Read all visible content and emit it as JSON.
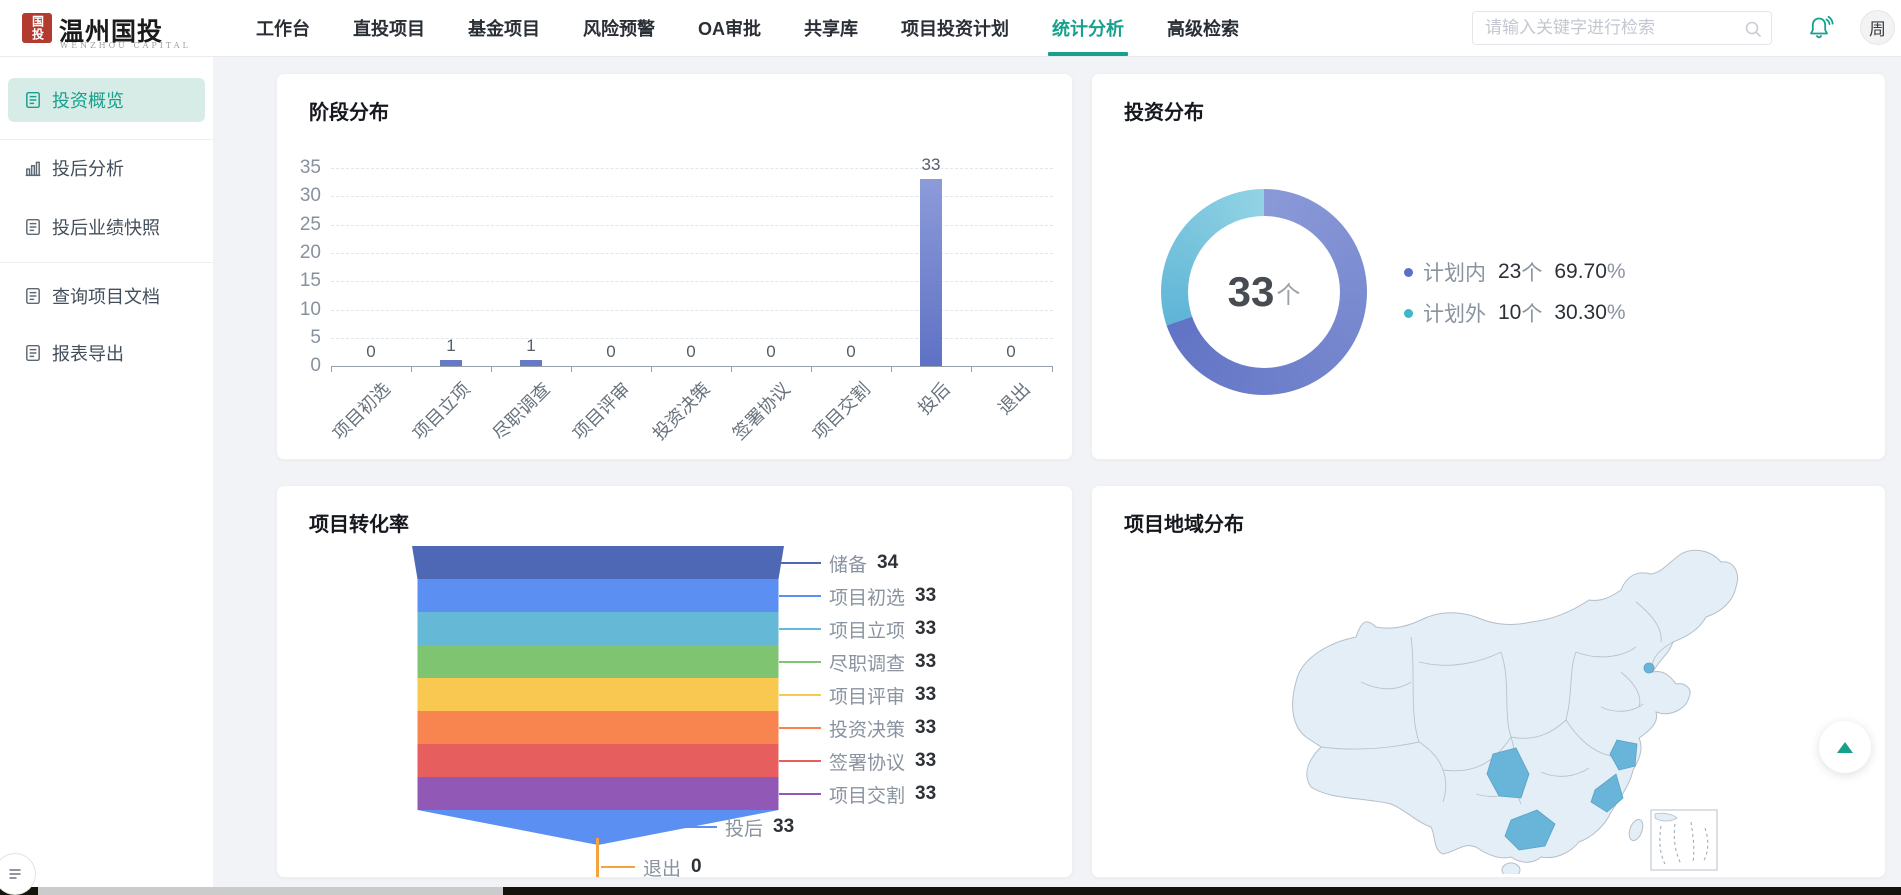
{
  "brand": {
    "seal_text": "国投",
    "name": "温州国投",
    "subtitle": "WENZHOU CAPITAL"
  },
  "nav": {
    "items": [
      {
        "label": "工作台"
      },
      {
        "label": "直投项目"
      },
      {
        "label": "基金项目"
      },
      {
        "label": "风险预警"
      },
      {
        "label": "OA审批"
      },
      {
        "label": "共享库"
      },
      {
        "label": "项目投资计划"
      },
      {
        "label": "统计分析"
      },
      {
        "label": "高级检索"
      }
    ],
    "active_label": "统计分析"
  },
  "search": {
    "placeholder": "请输入关键字进行检索"
  },
  "user": {
    "avatar_text": "周"
  },
  "sidebar": {
    "items": [
      {
        "label": "投资概览"
      },
      {
        "label": "投后分析"
      },
      {
        "label": "投后业绩快照"
      },
      {
        "label": "查询项目文档"
      },
      {
        "label": "报表导出"
      }
    ],
    "active_label": "投资概览"
  },
  "colors": {
    "accent_teal": "#17a08c",
    "bar_fill": "#6679c7",
    "axis_label": "#87919d",
    "map_base": "#e4eef6",
    "map_highlight": "#69b4d9"
  },
  "chart_data": [
    {
      "type": "bar",
      "title": "阶段分布",
      "categories": [
        "项目初选",
        "项目立项",
        "尽职调查",
        "项目评审",
        "投资决策",
        "签署协议",
        "项目交割",
        "投后",
        "退出"
      ],
      "values": [
        0,
        1,
        1,
        0,
        0,
        0,
        0,
        33,
        0
      ],
      "yticks": [
        35,
        30,
        25,
        20,
        15,
        10,
        5,
        0
      ],
      "ylim": [
        0,
        35
      ],
      "grid": "dashed horizontal"
    },
    {
      "type": "pie",
      "title": "投资分布",
      "center_value": "33",
      "center_unit": "个",
      "series": [
        {
          "name": "计划内",
          "count": 23,
          "unit": "个",
          "percent": "69.70",
          "percent_unit": "%",
          "color": "#5b6fc4",
          "color_light": "#8a99d7",
          "color_dark": "#6173c5"
        },
        {
          "name": "计划外",
          "count": 10,
          "unit": "个",
          "percent": "30.30",
          "percent_unit": "%",
          "color": "#3cb8c6",
          "color_light": "#92d3e4",
          "color_dark": "#5fb5d7"
        }
      ],
      "legend_position": "right"
    },
    {
      "type": "funnel",
      "title": "项目转化率",
      "stages": [
        {
          "name": "储备",
          "value": 34,
          "color": "#4e68b5"
        },
        {
          "name": "项目初选",
          "value": 33,
          "color": "#5b8ff2"
        },
        {
          "name": "项目立项",
          "value": 33,
          "color": "#65b8d6"
        },
        {
          "name": "尽职调查",
          "value": 33,
          "color": "#7fc471"
        },
        {
          "name": "项目评审",
          "value": 33,
          "color": "#f8c851"
        },
        {
          "name": "投资决策",
          "value": 33,
          "color": "#f8854f"
        },
        {
          "name": "签署协议",
          "value": 33,
          "color": "#e65f5e"
        },
        {
          "name": "项目交割",
          "value": 33,
          "color": "#9159b5"
        },
        {
          "name": "投后",
          "value": 33,
          "color": "#5b8ff2"
        },
        {
          "name": "退出",
          "value": 0,
          "color": "#f5a33f"
        }
      ]
    },
    {
      "type": "map",
      "title": "项目地域分布",
      "region": "中国",
      "highlighted_regions": [
        "北京",
        "湖南",
        "浙江",
        "福建",
        "广东"
      ]
    }
  ]
}
